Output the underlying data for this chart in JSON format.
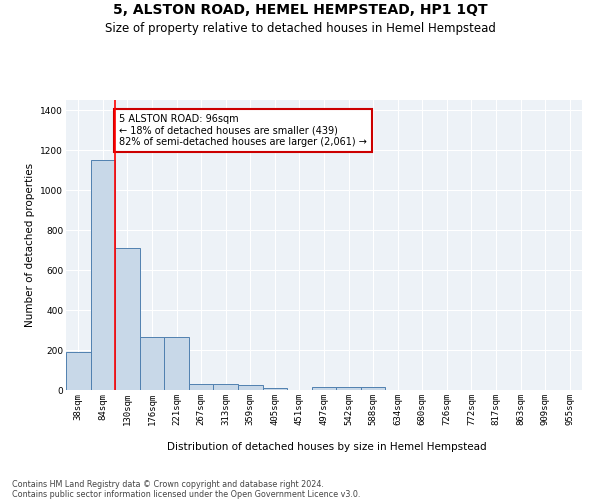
{
  "title": "5, ALSTON ROAD, HEMEL HEMPSTEAD, HP1 1QT",
  "subtitle": "Size of property relative to detached houses in Hemel Hempstead",
  "xlabel": "Distribution of detached houses by size in Hemel Hempstead",
  "ylabel": "Number of detached properties",
  "footer_line1": "Contains HM Land Registry data © Crown copyright and database right 2024.",
  "footer_line2": "Contains public sector information licensed under the Open Government Licence v3.0.",
  "categories": [
    "38sqm",
    "84sqm",
    "130sqm",
    "176sqm",
    "221sqm",
    "267sqm",
    "313sqm",
    "359sqm",
    "405sqm",
    "451sqm",
    "497sqm",
    "542sqm",
    "588sqm",
    "634sqm",
    "680sqm",
    "726sqm",
    "772sqm",
    "817sqm",
    "863sqm",
    "909sqm",
    "955sqm"
  ],
  "bar_heights": [
    190,
    1150,
    710,
    265,
    265,
    30,
    28,
    27,
    12,
    0,
    15,
    15,
    15,
    0,
    0,
    0,
    0,
    0,
    0,
    0,
    0
  ],
  "bar_color": "#c8d8e8",
  "bar_edge_color": "#5080b0",
  "annotation_text": "5 ALSTON ROAD: 96sqm\n← 18% of detached houses are smaller (439)\n82% of semi-detached houses are larger (2,061) →",
  "annotation_box_color": "#ffffff",
  "annotation_box_edge": "#cc0000",
  "ylim": [
    0,
    1450
  ],
  "yticks": [
    0,
    200,
    400,
    600,
    800,
    1000,
    1200,
    1400
  ],
  "bg_color": "#edf2f7",
  "grid_color": "#ffffff",
  "title_fontsize": 10,
  "subtitle_fontsize": 8.5,
  "axis_label_fontsize": 7.5,
  "tick_fontsize": 6.5,
  "footer_fontsize": 5.8
}
